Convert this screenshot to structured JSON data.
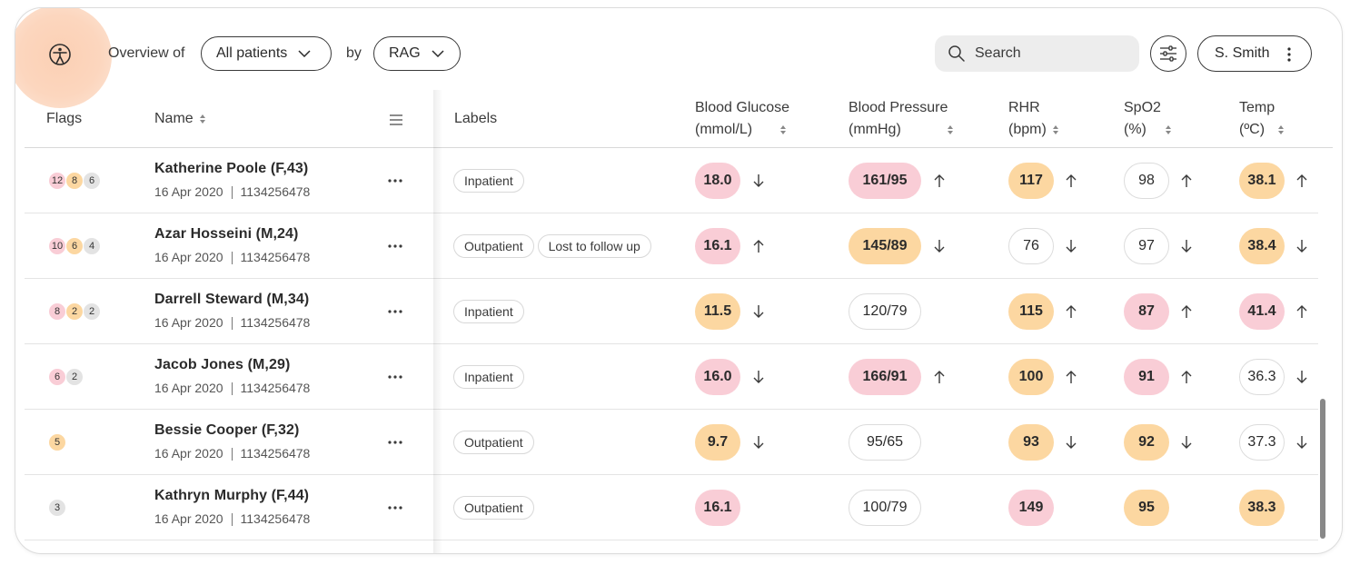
{
  "toolbar": {
    "overview_label": "Overview of",
    "patients_select": "All patients",
    "by_label": "by",
    "view_select": "RAG",
    "search_placeholder": "Search",
    "user_name": "S. Smith"
  },
  "header": {
    "flags": "Flags",
    "name": "Name",
    "labels": "Labels",
    "glucose_l1": "Blood Glucose",
    "glucose_l2": "(mmol/L)",
    "bp_l1": "Blood Pressure",
    "bp_l2": "(mmHg)",
    "rhr_l1": "RHR",
    "rhr_l2": "(bpm)",
    "spo2_l1": "SpO2",
    "spo2_l2": "(%)",
    "temp_l1": "Temp",
    "temp_l2": "(ºC)"
  },
  "patients": [
    {
      "name": "Katherine Poole (F,43)",
      "date": "16 Apr 2020",
      "id": "1134256478",
      "flags": [
        {
          "v": "12",
          "c": "red"
        },
        {
          "v": "8",
          "c": "amber"
        },
        {
          "v": "6",
          "c": "grey"
        }
      ],
      "labels": [
        "Inpatient"
      ],
      "glucose": {
        "v": "18.0",
        "c": "red",
        "t": "down"
      },
      "bp": {
        "v": "161/95",
        "c": "red",
        "t": "up"
      },
      "rhr": {
        "v": "117",
        "c": "amber",
        "t": "up"
      },
      "spo2": {
        "v": "98",
        "c": "none",
        "t": "up"
      },
      "temp": {
        "v": "38.1",
        "c": "amber",
        "t": "up"
      }
    },
    {
      "name": "Azar Hosseini (M,24)",
      "date": "16 Apr 2020",
      "id": "1134256478",
      "flags": [
        {
          "v": "10",
          "c": "red"
        },
        {
          "v": "6",
          "c": "amber"
        },
        {
          "v": "4",
          "c": "grey"
        }
      ],
      "labels": [
        "Outpatient",
        "Lost to follow up"
      ],
      "glucose": {
        "v": "16.1",
        "c": "red",
        "t": "up"
      },
      "bp": {
        "v": "145/89",
        "c": "amber",
        "t": "down"
      },
      "rhr": {
        "v": "76",
        "c": "none",
        "t": "down"
      },
      "spo2": {
        "v": "97",
        "c": "none",
        "t": "down"
      },
      "temp": {
        "v": "38.4",
        "c": "amber",
        "t": "down"
      }
    },
    {
      "name": "Darrell Steward (M,34)",
      "date": "16 Apr 2020",
      "id": "1134256478",
      "flags": [
        {
          "v": "8",
          "c": "red"
        },
        {
          "v": "2",
          "c": "amber"
        },
        {
          "v": "2",
          "c": "grey"
        }
      ],
      "labels": [
        "Inpatient"
      ],
      "glucose": {
        "v": "11.5",
        "c": "amber",
        "t": "down"
      },
      "bp": {
        "v": "120/79",
        "c": "none",
        "t": ""
      },
      "rhr": {
        "v": "115",
        "c": "amber",
        "t": "up"
      },
      "spo2": {
        "v": "87",
        "c": "red",
        "t": "up"
      },
      "temp": {
        "v": "41.4",
        "c": "red",
        "t": "up"
      }
    },
    {
      "name": "Jacob Jones (M,29)",
      "date": "16 Apr 2020",
      "id": "1134256478",
      "flags": [
        {
          "v": "6",
          "c": "red"
        },
        {
          "v": "2",
          "c": "grey"
        }
      ],
      "labels": [
        "Inpatient"
      ],
      "glucose": {
        "v": "16.0",
        "c": "red",
        "t": "down"
      },
      "bp": {
        "v": "166/91",
        "c": "red",
        "t": "up"
      },
      "rhr": {
        "v": "100",
        "c": "amber",
        "t": "up"
      },
      "spo2": {
        "v": "91",
        "c": "red",
        "t": "up"
      },
      "temp": {
        "v": "36.3",
        "c": "none",
        "t": "down"
      }
    },
    {
      "name": "Bessie Cooper (F,32)",
      "date": "16 Apr 2020",
      "id": "1134256478",
      "flags": [
        {
          "v": "5",
          "c": "amber"
        }
      ],
      "labels": [
        "Outpatient"
      ],
      "glucose": {
        "v": "9.7",
        "c": "amber",
        "t": "down"
      },
      "bp": {
        "v": "95/65",
        "c": "none",
        "t": ""
      },
      "rhr": {
        "v": "93",
        "c": "amber",
        "t": "down"
      },
      "spo2": {
        "v": "92",
        "c": "amber",
        "t": "down"
      },
      "temp": {
        "v": "37.3",
        "c": "none",
        "t": "down"
      }
    },
    {
      "name": "Kathryn Murphy (F,44)",
      "date": "16 Apr 2020",
      "id": "1134256478",
      "flags": [
        {
          "v": "3",
          "c": "grey"
        }
      ],
      "labels": [
        "Outpatient"
      ],
      "glucose": {
        "v": "16.1",
        "c": "red",
        "t": ""
      },
      "bp": {
        "v": "100/79",
        "c": "none",
        "t": ""
      },
      "rhr": {
        "v": "149",
        "c": "red",
        "t": ""
      },
      "spo2": {
        "v": "95",
        "c": "amber",
        "t": ""
      },
      "temp": {
        "v": "38.3",
        "c": "amber",
        "t": ""
      }
    }
  ],
  "icons": {
    "logo": "person-circle-icon",
    "chevron": "chevron-down-icon",
    "search": "search-icon",
    "filter": "sliders-icon",
    "more": "kebab-icon",
    "sort": "sort-icon",
    "column_menu": "menu-icon"
  },
  "colors": {
    "red": "#f9cdd6",
    "amber": "#fcd7a1",
    "grey": "#e3e3e3",
    "accent_glow": "#fcd6be"
  }
}
